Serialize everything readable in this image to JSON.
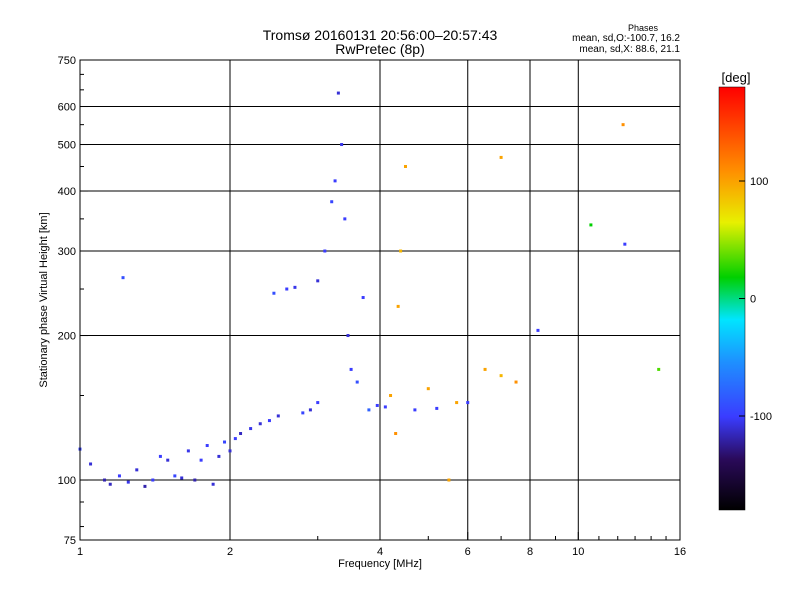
{
  "header": {
    "title": "Tromsø 20160131 20:56:00–20:57:43",
    "subtitle": "RwPretec (8p)"
  },
  "phase_info": {
    "heading": "Phases",
    "line_o": "mean, sd,O:-100.7, 16.2",
    "line_x": "mean, sd,X:  88.6, 21.1"
  },
  "colorbar": {
    "unit_label": "[deg]",
    "range": [
      -180,
      180
    ],
    "ticks": [
      {
        "value": 100,
        "label": "100"
      },
      {
        "value": 0,
        "label": "0"
      },
      {
        "value": -100,
        "label": "-100"
      }
    ]
  },
  "chart_data": {
    "type": "scatter",
    "title": "Tromsø 20160131 20:56:00–20:57:43",
    "subtitle": "RwPretec (8p)",
    "xlabel": "Frequency [MHz]",
    "ylabel": "Stationary phase Virtual Height [km]",
    "x_scale": "log",
    "y_scale": "log",
    "xlim": [
      1,
      16
    ],
    "ylim": [
      75,
      750
    ],
    "grid": true,
    "x_ticks": [
      {
        "value": 1,
        "label": "1"
      },
      {
        "value": 2,
        "label": "2"
      },
      {
        "value": 4,
        "label": "4"
      },
      {
        "value": 6,
        "label": "6"
      },
      {
        "value": 8,
        "label": "8"
      },
      {
        "value": 10,
        "label": "10"
      },
      {
        "value": 16,
        "label": "16"
      }
    ],
    "x_minor_ticks": [
      3,
      5,
      7,
      9,
      11,
      12,
      13,
      14,
      15
    ],
    "x_gridlines": [
      2,
      4,
      6,
      8,
      10
    ],
    "y_ticks": [
      {
        "value": 75,
        "label": "75"
      },
      {
        "value": 100,
        "label": "100"
      },
      {
        "value": 200,
        "label": "200"
      },
      {
        "value": 300,
        "label": "300"
      },
      {
        "value": 400,
        "label": "400"
      },
      {
        "value": 500,
        "label": "500"
      },
      {
        "value": 600,
        "label": "600"
      },
      {
        "value": 750,
        "label": "750"
      }
    ],
    "y_minor_ticks": [
      80,
      90,
      150,
      250,
      350,
      450,
      550,
      650,
      700
    ],
    "y_gridlines": [
      100,
      200,
      300,
      400,
      500,
      600
    ],
    "series": [
      {
        "points": [
          {
            "f": 1.0,
            "h": 116,
            "p": -95
          },
          {
            "f": 1.05,
            "h": 108,
            "p": -110
          },
          {
            "f": 1.12,
            "h": 100,
            "p": -120
          },
          {
            "f": 1.15,
            "h": 98,
            "p": -115
          },
          {
            "f": 1.2,
            "h": 102,
            "p": -100
          },
          {
            "f": 1.22,
            "h": 264,
            "p": -90
          },
          {
            "f": 1.25,
            "h": 99,
            "p": -105
          },
          {
            "f": 1.3,
            "h": 105,
            "p": -110
          },
          {
            "f": 1.35,
            "h": 97,
            "p": -120
          },
          {
            "f": 1.4,
            "h": 100,
            "p": -100
          },
          {
            "f": 1.45,
            "h": 112,
            "p": -100
          },
          {
            "f": 1.5,
            "h": 110,
            "p": -110
          },
          {
            "f": 1.55,
            "h": 102,
            "p": -95
          },
          {
            "f": 1.6,
            "h": 101,
            "p": -110
          },
          {
            "f": 1.65,
            "h": 115,
            "p": -105
          },
          {
            "f": 1.7,
            "h": 100,
            "p": -120
          },
          {
            "f": 1.75,
            "h": 110,
            "p": -100
          },
          {
            "f": 1.8,
            "h": 118,
            "p": -100
          },
          {
            "f": 1.85,
            "h": 98,
            "p": -110
          },
          {
            "f": 1.9,
            "h": 112,
            "p": -110
          },
          {
            "f": 1.95,
            "h": 120,
            "p": -95
          },
          {
            "f": 2.0,
            "h": 115,
            "p": -110
          },
          {
            "f": 2.05,
            "h": 122,
            "p": -100
          },
          {
            "f": 2.1,
            "h": 125,
            "p": -115
          },
          {
            "f": 2.2,
            "h": 128,
            "p": -105
          },
          {
            "f": 2.3,
            "h": 131,
            "p": -110
          },
          {
            "f": 2.4,
            "h": 133,
            "p": -100
          },
          {
            "f": 2.5,
            "h": 136,
            "p": -110
          },
          {
            "f": 2.45,
            "h": 245,
            "p": -90
          },
          {
            "f": 2.6,
            "h": 250,
            "p": -100
          },
          {
            "f": 2.7,
            "h": 252,
            "p": -105
          },
          {
            "f": 2.8,
            "h": 138,
            "p": -95
          },
          {
            "f": 2.9,
            "h": 140,
            "p": -110
          },
          {
            "f": 3.0,
            "h": 145,
            "p": -100
          },
          {
            "f": 3.0,
            "h": 260,
            "p": -110
          },
          {
            "f": 3.1,
            "h": 300,
            "p": -100
          },
          {
            "f": 3.2,
            "h": 380,
            "p": -95
          },
          {
            "f": 3.25,
            "h": 420,
            "p": -100
          },
          {
            "f": 3.3,
            "h": 640,
            "p": -110
          },
          {
            "f": 3.35,
            "h": 500,
            "p": -105
          },
          {
            "f": 3.4,
            "h": 350,
            "p": -100
          },
          {
            "f": 3.45,
            "h": 200,
            "p": -110
          },
          {
            "f": 3.5,
            "h": 170,
            "p": -100
          },
          {
            "f": 3.6,
            "h": 160,
            "p": -90
          },
          {
            "f": 3.7,
            "h": 240,
            "p": -100
          },
          {
            "f": 3.8,
            "h": 140,
            "p": -80
          },
          {
            "f": 3.95,
            "h": 143,
            "p": -100
          },
          {
            "f": 4.1,
            "h": 142,
            "p": -100
          },
          {
            "f": 4.2,
            "h": 150,
            "p": 100
          },
          {
            "f": 4.3,
            "h": 125,
            "p": 110
          },
          {
            "f": 4.35,
            "h": 230,
            "p": 100
          },
          {
            "f": 4.4,
            "h": 300,
            "p": 90
          },
          {
            "f": 4.5,
            "h": 450,
            "p": 100
          },
          {
            "f": 4.7,
            "h": 140,
            "p": -100
          },
          {
            "f": 5.0,
            "h": 155,
            "p": 100
          },
          {
            "f": 5.2,
            "h": 141,
            "p": -100
          },
          {
            "f": 5.5,
            "h": 100,
            "p": 100
          },
          {
            "f": 5.7,
            "h": 145,
            "p": 100
          },
          {
            "f": 6.0,
            "h": 145,
            "p": -100
          },
          {
            "f": 6.5,
            "h": 170,
            "p": 100
          },
          {
            "f": 7.0,
            "h": 165,
            "p": 90
          },
          {
            "f": 7.0,
            "h": 470,
            "p": 100
          },
          {
            "f": 7.5,
            "h": 160,
            "p": 110
          },
          {
            "f": 8.3,
            "h": 205,
            "p": -100
          },
          {
            "f": 10.6,
            "h": 340,
            "p": 0
          },
          {
            "f": 12.3,
            "h": 550,
            "p": 110
          },
          {
            "f": 12.4,
            "h": 310,
            "p": -100
          },
          {
            "f": 14.5,
            "h": 170,
            "p": 20
          }
        ]
      }
    ]
  }
}
